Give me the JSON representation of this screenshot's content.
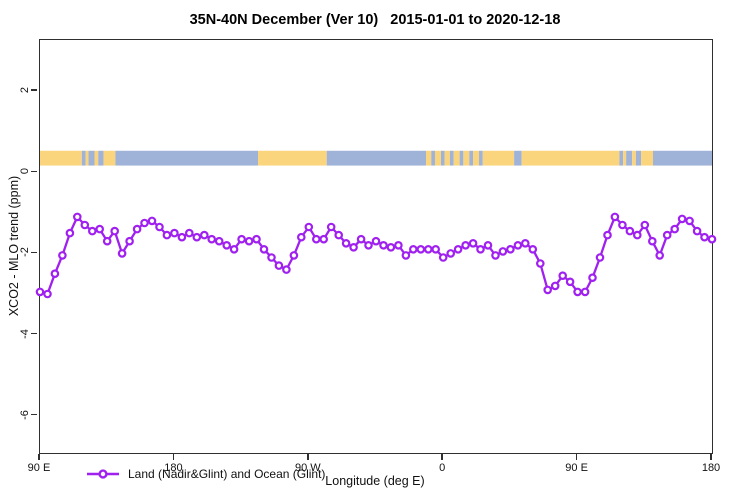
{
  "title": "35N-40N December (Ver 10)   2015-01-01 to 2020-12-18",
  "colors": {
    "line": "#A020F0",
    "marker_fill": "#ffffff",
    "land": "#FAD57E",
    "ocean": "#9FB2D8",
    "axis": "#2f2f2f",
    "background": "#ffffff"
  },
  "chart_data": {
    "type": "line",
    "title": "35N-40N December (Ver 10)   2015-01-01 to 2020-12-18",
    "xlabel": "Longitude (deg E)",
    "ylabel": "XCO2 - MLO trend (ppm)",
    "xlim": [
      90,
      540
    ],
    "ylim": [
      -6.92,
      3.26
    ],
    "grid": false,
    "x_ticks": [
      {
        "deg": 90,
        "label": "90 E"
      },
      {
        "deg": 180,
        "label": "180"
      },
      {
        "deg": 270,
        "label": "90 W"
      },
      {
        "deg": 360,
        "label": "0"
      },
      {
        "deg": 450,
        "label": "90 E"
      },
      {
        "deg": 540,
        "label": "180"
      }
    ],
    "y_ticks": [
      {
        "value": 2,
        "label": "2"
      },
      {
        "value": 0,
        "label": "0"
      },
      {
        "value": -2,
        "label": "-2"
      },
      {
        "value": -4,
        "label": "-4"
      },
      {
        "value": -6,
        "label": "-6"
      }
    ],
    "series": [
      {
        "name": "Land (Nadir&Glint) and Ocean (Glint)",
        "color": "#A020F0",
        "marker": "open-circle",
        "x_start_deg": 90,
        "x_step_deg": 5,
        "x_deg": [
          90,
          95,
          100,
          105,
          110,
          115,
          120,
          125,
          130,
          135,
          140,
          145,
          150,
          155,
          160,
          165,
          170,
          175,
          180,
          185,
          190,
          195,
          200,
          205,
          210,
          215,
          220,
          225,
          230,
          235,
          240,
          245,
          250,
          255,
          260,
          265,
          270,
          275,
          280,
          285,
          290,
          295,
          300,
          305,
          310,
          315,
          320,
          325,
          330,
          335,
          340,
          345,
          350,
          355,
          360,
          365,
          370,
          375,
          380,
          385,
          390,
          395,
          400,
          405,
          410,
          415,
          420,
          425,
          430,
          435,
          440,
          445,
          450,
          455,
          460,
          465,
          470,
          475,
          480,
          485,
          490,
          495,
          500,
          505,
          510,
          515,
          520,
          525,
          530,
          535,
          540
        ],
        "values": [
          -2.95,
          -3.0,
          -2.5,
          -2.05,
          -1.5,
          -1.1,
          -1.3,
          -1.45,
          -1.4,
          -1.7,
          -1.45,
          -2.0,
          -1.7,
          -1.4,
          -1.25,
          -1.2,
          -1.35,
          -1.55,
          -1.5,
          -1.6,
          -1.5,
          -1.6,
          -1.55,
          -1.65,
          -1.7,
          -1.8,
          -1.9,
          -1.65,
          -1.7,
          -1.65,
          -1.9,
          -2.1,
          -2.3,
          -2.4,
          -2.05,
          -1.6,
          -1.35,
          -1.65,
          -1.65,
          -1.35,
          -1.55,
          -1.75,
          -1.85,
          -1.65,
          -1.8,
          -1.7,
          -1.8,
          -1.85,
          -1.8,
          -2.05,
          -1.9,
          -1.9,
          -1.9,
          -1.9,
          -2.1,
          -2.0,
          -1.9,
          -1.8,
          -1.75,
          -1.9,
          -1.8,
          -2.05,
          -1.95,
          -1.9,
          -1.8,
          -1.75,
          -1.9,
          -2.25,
          -2.9,
          -2.8,
          -2.55,
          -2.7,
          -2.95,
          -2.95,
          -2.6,
          -2.1,
          -1.55,
          -1.1,
          -1.3,
          -1.45,
          -1.55,
          -1.3,
          -1.7,
          -2.05,
          -1.55,
          -1.4,
          -1.15,
          -1.2,
          -1.45,
          -1.6,
          -1.65
        ]
      }
    ],
    "map_strip": {
      "description": "land/ocean coastline band",
      "value_range": [
        0.165,
        0.53
      ],
      "land_color": "#FAD57E",
      "ocean_color": "#9FB2D8",
      "segments": [
        {
          "from": 90,
          "to": 118,
          "type": "land"
        },
        {
          "from": 118,
          "to": 120.5,
          "type": "ocean"
        },
        {
          "from": 120.5,
          "to": 122.5,
          "type": "land"
        },
        {
          "from": 122.5,
          "to": 126.5,
          "type": "ocean"
        },
        {
          "from": 126.5,
          "to": 129,
          "type": "land"
        },
        {
          "from": 129,
          "to": 132.5,
          "type": "ocean"
        },
        {
          "from": 132.5,
          "to": 140.5,
          "type": "land"
        },
        {
          "from": 140.5,
          "to": 236,
          "type": "ocean"
        },
        {
          "from": 236,
          "to": 282,
          "type": "land"
        },
        {
          "from": 282,
          "to": 348.5,
          "type": "ocean"
        },
        {
          "from": 348.5,
          "to": 352,
          "type": "land"
        },
        {
          "from": 352,
          "to": 354.5,
          "type": "ocean"
        },
        {
          "from": 354.5,
          "to": 358.5,
          "type": "land"
        },
        {
          "from": 358.5,
          "to": 361,
          "type": "ocean"
        },
        {
          "from": 361,
          "to": 364.5,
          "type": "land"
        },
        {
          "from": 364.5,
          "to": 367,
          "type": "ocean"
        },
        {
          "from": 367,
          "to": 371,
          "type": "land"
        },
        {
          "from": 371,
          "to": 373.5,
          "type": "ocean"
        },
        {
          "from": 373.5,
          "to": 377.5,
          "type": "land"
        },
        {
          "from": 377.5,
          "to": 380,
          "type": "ocean"
        },
        {
          "from": 380,
          "to": 384,
          "type": "land"
        },
        {
          "from": 384,
          "to": 386.5,
          "type": "ocean"
        },
        {
          "from": 386.5,
          "to": 407.5,
          "type": "land"
        },
        {
          "from": 407.5,
          "to": 412.5,
          "type": "ocean"
        },
        {
          "from": 412.5,
          "to": 478,
          "type": "land"
        },
        {
          "from": 478,
          "to": 480.5,
          "type": "ocean"
        },
        {
          "from": 480.5,
          "to": 482.5,
          "type": "land"
        },
        {
          "from": 482.5,
          "to": 486.5,
          "type": "ocean"
        },
        {
          "from": 486.5,
          "to": 489,
          "type": "land"
        },
        {
          "from": 489,
          "to": 492.5,
          "type": "ocean"
        },
        {
          "from": 492.5,
          "to": 500.5,
          "type": "land"
        },
        {
          "from": 500.5,
          "to": 540,
          "type": "ocean"
        }
      ]
    },
    "legend": {
      "position": "bottom-left-inside",
      "entries": [
        "Land (Nadir&Glint) and Ocean (Glint)"
      ]
    }
  }
}
